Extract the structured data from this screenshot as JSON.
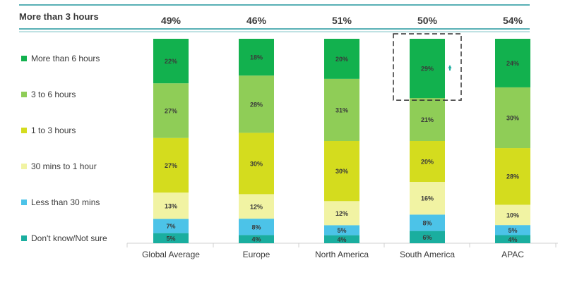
{
  "chart_data": {
    "type": "bar",
    "stacked": true,
    "categories": [
      "Global Average",
      "Europe",
      "North America",
      "South America",
      "APAC"
    ],
    "summary_row": {
      "label": "More than 3 hours",
      "values": [
        "49%",
        "46%",
        "51%",
        "50%",
        "54%"
      ]
    },
    "series": [
      {
        "name": "Don't know/Not sure",
        "values": [
          5,
          4,
          4,
          6,
          4
        ],
        "labels": [
          "5%",
          "4%",
          "4%",
          "6%",
          "4%"
        ],
        "color": "#1aae9f"
      },
      {
        "name": "Less than 30 mins",
        "values": [
          7,
          8,
          5,
          8,
          5
        ],
        "labels": [
          "7%",
          "8%",
          "5%",
          "8%",
          "5%"
        ],
        "color": "#4cc3e8"
      },
      {
        "name": "30 mins to 1 hour",
        "values": [
          13,
          12,
          12,
          16,
          10
        ],
        "labels": [
          "13%",
          "12%",
          "12%",
          "16%",
          "10%"
        ],
        "color": "#f1f3a3"
      },
      {
        "name": "1 to 3 hours",
        "values": [
          27,
          30,
          30,
          20,
          28
        ],
        "labels": [
          "27%",
          "30%",
          "30%",
          "20%",
          "28%"
        ],
        "color": "#d4dc1e"
      },
      {
        "name": "3 to 6 hours",
        "values": [
          27,
          28,
          31,
          21,
          30
        ],
        "labels": [
          "27%",
          "28%",
          "31%",
          "21%",
          "30%"
        ],
        "color": "#8fcd57"
      },
      {
        "name": "More than 6 hours",
        "values": [
          22,
          18,
          20,
          29,
          24
        ],
        "labels": [
          "22%",
          "18%",
          "20%",
          "29%",
          "24%"
        ],
        "color": "#12b14e"
      }
    ],
    "highlight": {
      "category": "South America",
      "series": "More than 6 hours"
    },
    "ylim": [
      0,
      100
    ]
  },
  "legend_order": [
    "More than 6 hours",
    "3 to 6 hours",
    "1 to 3 hours",
    "30 mins to 1 hour",
    "Less than 30 mins",
    "Don't know/Not sure"
  ],
  "colors": {
    "text": "#3a3a3a",
    "teal_line": "#59b0b5",
    "axis": "#d0d0d0",
    "highlight_border": "#333333",
    "arrow": "#1aae9f"
  }
}
